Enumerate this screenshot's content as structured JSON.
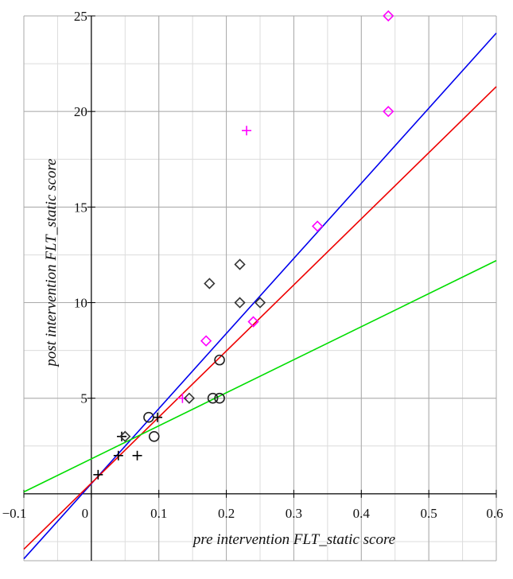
{
  "chart_data": {
    "type": "scatter",
    "title": "",
    "xlabel": "pre intervention FLT_static score",
    "ylabel": "post intervention FLT_static score",
    "xlim": [
      -0.1,
      0.6
    ],
    "ylim": [
      -3.5,
      25
    ],
    "x_ticks": [
      -0.1,
      0,
      0.1,
      0.2,
      0.3,
      0.4,
      0.5,
      0.6
    ],
    "x_tick_labels": [
      "−0.1",
      "0",
      "0.1",
      "0.2",
      "0.3",
      "0.4",
      "0.5",
      "0.6"
    ],
    "y_ticks": [
      5,
      10,
      15,
      20,
      25
    ],
    "y_tick_labels": [
      "5",
      "10",
      "15",
      "20",
      "25"
    ],
    "grid": true,
    "legend": "none",
    "series": [
      {
        "name": "black-plus",
        "marker": "plus",
        "color": "#000000",
        "points": [
          [
            0.01,
            1
          ],
          [
            0.04,
            2
          ],
          [
            0.045,
            3
          ],
          [
            0.068,
            2
          ],
          [
            0.098,
            4
          ]
        ]
      },
      {
        "name": "magenta-plus",
        "marker": "plus",
        "color": "#ff00ff",
        "points": [
          [
            0.23,
            19
          ],
          [
            0.135,
            5
          ]
        ]
      },
      {
        "name": "black-circle",
        "marker": "circle",
        "color": "#222222",
        "points": [
          [
            0.085,
            4
          ],
          [
            0.093,
            3
          ],
          [
            0.18,
            5
          ],
          [
            0.19,
            5
          ],
          [
            0.19,
            7
          ]
        ]
      },
      {
        "name": "black-diamond",
        "marker": "diamond",
        "color": "#333333",
        "points": [
          [
            0.05,
            3
          ],
          [
            0.145,
            5
          ],
          [
            0.175,
            11
          ],
          [
            0.22,
            10
          ],
          [
            0.22,
            12
          ],
          [
            0.25,
            10
          ]
        ]
      },
      {
        "name": "magenta-diamond",
        "marker": "diamond",
        "color": "#ff00ff",
        "points": [
          [
            0.17,
            8
          ],
          [
            0.24,
            9
          ],
          [
            0.335,
            14
          ],
          [
            0.44,
            25
          ],
          [
            0.44,
            20
          ]
        ]
      }
    ],
    "lines": [
      {
        "name": "blue-fit",
        "color": "#0000ee",
        "x": [
          -0.1,
          0.6
        ],
        "y": [
          -3.4,
          24.1
        ]
      },
      {
        "name": "red-fit",
        "color": "#ee0000",
        "x": [
          -0.1,
          0.6
        ],
        "y": [
          -2.9,
          21.3
        ]
      },
      {
        "name": "green-fit",
        "color": "#00dd00",
        "x": [
          -0.1,
          0.6
        ],
        "y": [
          0.1,
          12.2
        ]
      }
    ]
  }
}
